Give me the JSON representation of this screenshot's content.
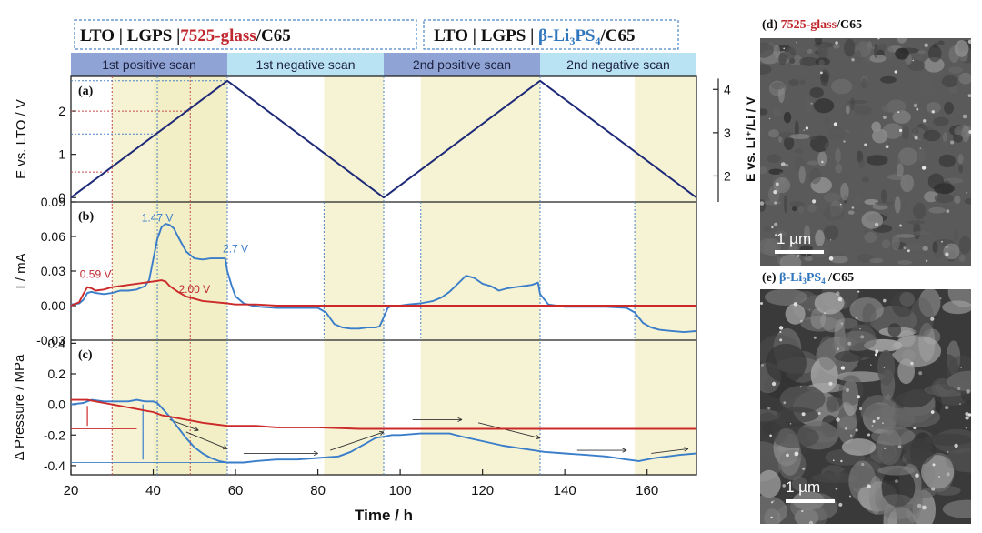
{
  "header": {
    "left": {
      "p1": "LTO | LGPS |",
      "p2": "7525-glass",
      "p3": "/C65"
    },
    "right": {
      "p1": "LTO | LGPS | ",
      "p2": "β-Li",
      "p2sub1": "3",
      "p2b": "PS",
      "p2sub2": "4",
      "p3": "/C65"
    }
  },
  "scan_bands": [
    {
      "label": "1st positive scan",
      "x_start": 20,
      "x_end": 58,
      "color": "#8fa3d4"
    },
    {
      "label": "1st negative scan",
      "x_start": 58,
      "x_end": 96,
      "color": "#b9e2f3"
    },
    {
      "label": "2nd positive scan",
      "x_start": 96,
      "x_end": 134,
      "color": "#8fa3d4"
    },
    {
      "label": "2nd negative scan",
      "x_start": 134,
      "x_end": 172,
      "color": "#b9e2f3"
    }
  ],
  "colors": {
    "navy": "#1e2a78",
    "red": "#cc2a2a",
    "blue": "#3a7dc9",
    "shade": "#f6f3d4",
    "axis": "#222222"
  },
  "chart_data": [
    {
      "panel": "a",
      "type": "line",
      "panel_label": "(a)",
      "ylabel": "E vs. LTO / V",
      "ylabel_right": "E vs. Li⁺/Li / V",
      "ylim": [
        -0.1,
        2.8
      ],
      "yticks": [
        0,
        1,
        2
      ],
      "yticks_right": [
        {
          "label": "2",
          "value": 0.5
        },
        {
          "label": "3",
          "value": 1.5
        },
        {
          "label": "4",
          "value": 2.5
        }
      ],
      "series": [
        {
          "x": [
            20,
            58,
            96,
            134,
            172
          ],
          "y": [
            0,
            2.7,
            0,
            2.7,
            0
          ]
        }
      ]
    },
    {
      "panel": "b",
      "type": "line",
      "panel_label": "(b)",
      "ylabel": "I / mA",
      "ylim": [
        -0.03,
        0.09
      ],
      "yticks": [
        -0.03,
        0.0,
        0.03,
        0.06,
        0.09
      ],
      "annotations": [
        {
          "text": "1.47 V",
          "x": 41,
          "y": 0.073,
          "color": "blue"
        },
        {
          "text": "2.7 V",
          "x": 60,
          "y": 0.046,
          "color": "blue"
        },
        {
          "text": "0.59 V",
          "x": 26,
          "y": 0.024,
          "color": "red"
        },
        {
          "text": "2.00 V",
          "x": 50,
          "y": 0.011,
          "color": "red"
        }
      ],
      "series": [
        {
          "color": "blue",
          "x": [
            20,
            22,
            23,
            24,
            25,
            26,
            28,
            30,
            32,
            34,
            36,
            38,
            39,
            40,
            41,
            42,
            43,
            44,
            45,
            46,
            48,
            50,
            52,
            54,
            56,
            57.5,
            58,
            59,
            60,
            62,
            64,
            66,
            70,
            75,
            80,
            82,
            84,
            86,
            88,
            90,
            92,
            94,
            95,
            96,
            97,
            98,
            100,
            102,
            105,
            108,
            110,
            112,
            114,
            116,
            118,
            120,
            122,
            124,
            126,
            128,
            130,
            132,
            133.5,
            134,
            136,
            140,
            145,
            150,
            155,
            157,
            159,
            161,
            163,
            166,
            169,
            172
          ],
          "y": [
            0.001,
            0.002,
            0.005,
            0.011,
            0.012,
            0.011,
            0.01,
            0.011,
            0.013,
            0.013,
            0.014,
            0.017,
            0.022,
            0.04,
            0.058,
            0.068,
            0.071,
            0.07,
            0.067,
            0.06,
            0.047,
            0.041,
            0.04,
            0.041,
            0.041,
            0.041,
            0.03,
            0.018,
            0.008,
            0.002,
            0.0,
            -0.001,
            -0.002,
            -0.002,
            -0.002,
            -0.006,
            -0.016,
            -0.019,
            -0.02,
            -0.02,
            -0.019,
            -0.019,
            -0.018,
            -0.01,
            -0.002,
            0.0,
            0.0,
            0.001,
            0.002,
            0.004,
            0.007,
            0.012,
            0.019,
            0.026,
            0.024,
            0.019,
            0.017,
            0.013,
            0.015,
            0.016,
            0.017,
            0.018,
            0.02,
            0.01,
            0.001,
            -0.001,
            -0.001,
            -0.001,
            -0.002,
            -0.006,
            -0.015,
            -0.019,
            -0.021,
            -0.022,
            -0.023,
            -0.022
          ]
        },
        {
          "color": "red",
          "x": [
            20,
            22,
            23,
            24,
            25,
            26,
            28,
            30,
            32,
            34,
            36,
            38,
            40,
            42,
            43,
            44,
            46,
            48,
            50,
            52,
            55,
            58,
            60,
            65,
            70,
            80,
            90,
            100,
            110,
            120,
            130,
            140,
            150,
            160,
            172
          ],
          "y": [
            0.0,
            0.003,
            0.01,
            0.016,
            0.015,
            0.013,
            0.014,
            0.016,
            0.017,
            0.018,
            0.019,
            0.02,
            0.021,
            0.022,
            0.021,
            0.017,
            0.012,
            0.008,
            0.006,
            0.004,
            0.003,
            0.002,
            0.001,
            0.001,
            0.0,
            0.0,
            0.0,
            0.0,
            0.0,
            0.0,
            0.0,
            0.0,
            0.0,
            0.0,
            0.0
          ]
        }
      ]
    },
    {
      "panel": "c",
      "type": "line",
      "panel_label": "(c)",
      "ylabel": "Δ Pressure / MPa",
      "xlabel": "Time / h",
      "xlim": [
        20,
        172
      ],
      "xticks": [
        20,
        40,
        60,
        80,
        100,
        120,
        140,
        160
      ],
      "ylim": [
        -0.46,
        0.42
      ],
      "yticks": [
        -0.4,
        -0.2,
        0.0,
        0.2,
        0.4
      ],
      "series": [
        {
          "color": "blue",
          "x": [
            20,
            23,
            25,
            28,
            30,
            32,
            34,
            36,
            38,
            40,
            41,
            42,
            44,
            46,
            48,
            50,
            52,
            54,
            56,
            58,
            60,
            62,
            65,
            70,
            75,
            80,
            85,
            88,
            90,
            92,
            94,
            96,
            98,
            100,
            105,
            110,
            112,
            115,
            120,
            125,
            130,
            135,
            140,
            145,
            150,
            155,
            158,
            160,
            162,
            165,
            168,
            172
          ],
          "y": [
            0.0,
            0.01,
            0.03,
            0.02,
            0.02,
            0.02,
            0.02,
            0.03,
            0.02,
            0.02,
            0.01,
            -0.02,
            -0.08,
            -0.15,
            -0.22,
            -0.28,
            -0.32,
            -0.35,
            -0.37,
            -0.38,
            -0.38,
            -0.38,
            -0.37,
            -0.36,
            -0.36,
            -0.35,
            -0.34,
            -0.31,
            -0.28,
            -0.25,
            -0.22,
            -0.21,
            -0.2,
            -0.2,
            -0.19,
            -0.19,
            -0.19,
            -0.21,
            -0.24,
            -0.27,
            -0.29,
            -0.31,
            -0.32,
            -0.33,
            -0.34,
            -0.36,
            -0.37,
            -0.36,
            -0.35,
            -0.34,
            -0.33,
            -0.32
          ]
        },
        {
          "color": "red",
          "x": [
            20,
            24,
            26,
            28,
            30,
            32,
            34,
            36,
            38,
            40,
            42,
            44,
            46,
            48,
            50,
            52,
            55,
            58,
            60,
            65,
            70,
            80,
            90,
            100,
            110,
            120,
            130,
            140,
            150,
            160,
            172
          ],
          "y": [
            0.03,
            0.03,
            0.02,
            0.01,
            0.0,
            -0.01,
            -0.02,
            -0.03,
            -0.04,
            -0.05,
            -0.07,
            -0.08,
            -0.09,
            -0.1,
            -0.11,
            -0.12,
            -0.13,
            -0.14,
            -0.14,
            -0.14,
            -0.15,
            -0.15,
            -0.16,
            -0.16,
            -0.16,
            -0.16,
            -0.16,
            -0.16,
            -0.16,
            -0.16,
            -0.16
          ]
        }
      ]
    }
  ],
  "sem_images": [
    {
      "label_bold": "(d) ",
      "label_color": "7525-glass",
      "label_rest": "/C65",
      "scale_text": "1 µm"
    },
    {
      "label_bold": "(e) ",
      "label_color": "β-Li",
      "sub1": "3",
      "label_color2": "PS",
      "sub2": "4",
      "label_rest": " /C65",
      "scale_text": "1 µm"
    }
  ]
}
